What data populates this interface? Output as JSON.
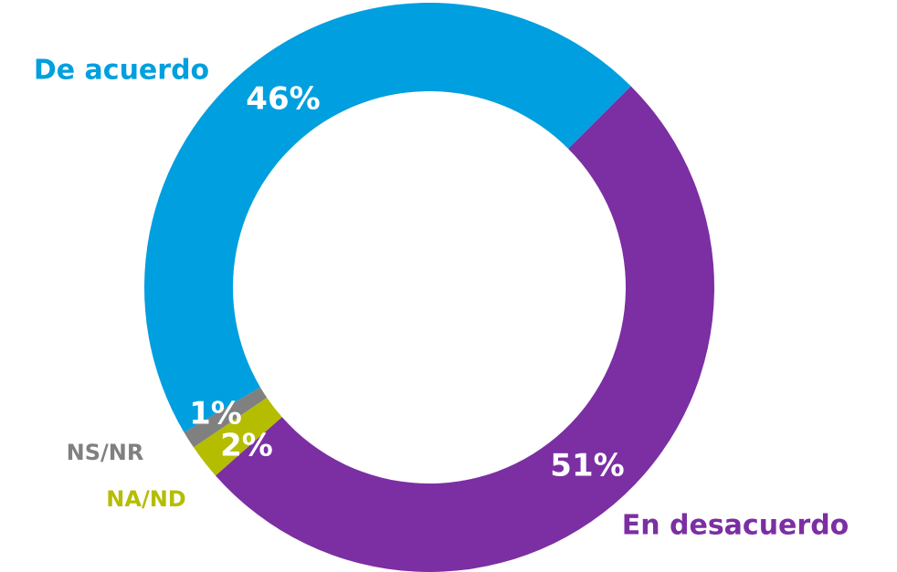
{
  "chart_data": {
    "type": "donut",
    "categories": [
      "En desacuerdo",
      "NA/ND",
      "NS/NR",
      "De acuerdo"
    ],
    "values": [
      51,
      2,
      1,
      46
    ],
    "value_labels": [
      "51%",
      "2%",
      "1%",
      "46%"
    ],
    "colors": [
      "#7b2fa3",
      "#b5bd00",
      "#808080",
      "#009fdf"
    ]
  }
}
